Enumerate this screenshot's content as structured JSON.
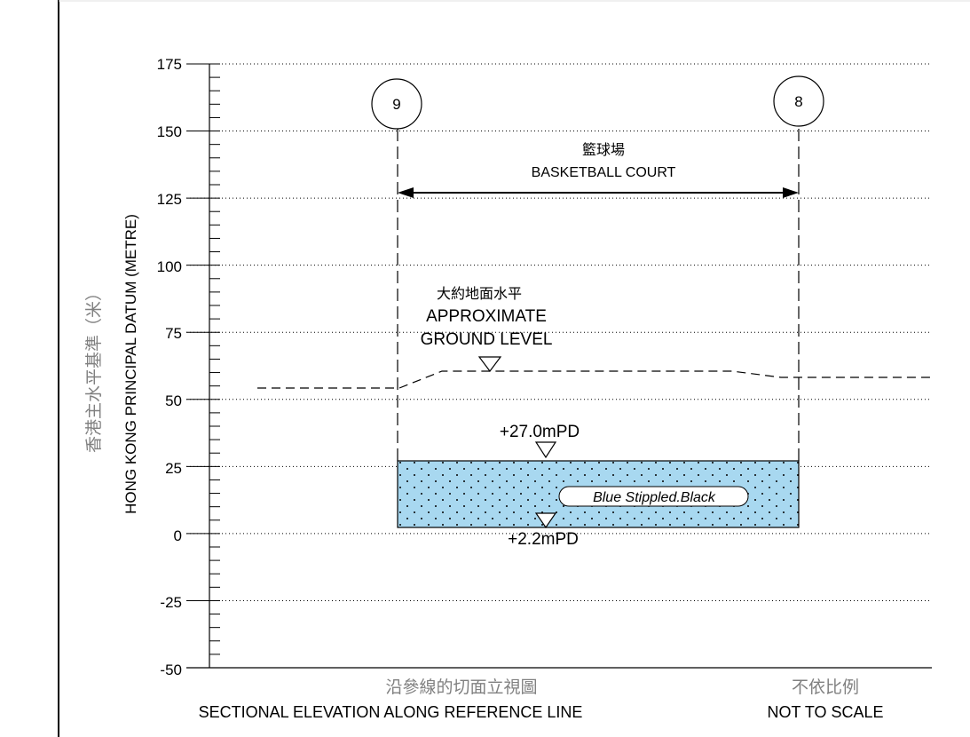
{
  "axis": {
    "label_zh": "香港主水平基準（米）",
    "label_en": "HONG KONG PRINCIPAL DATUM (METRE)",
    "ticks": [
      "175",
      "150",
      "125",
      "100",
      "75",
      "50",
      "25",
      "0",
      "-25",
      "-50"
    ],
    "range": [
      -50,
      175
    ],
    "major_step": 25,
    "minor_step": 5,
    "gridlines": "dotted"
  },
  "reference_points": [
    {
      "id": "9",
      "label": "9"
    },
    {
      "id": "8",
      "label": "8"
    }
  ],
  "court": {
    "name_zh": "籃球場",
    "name_en": "BASKETBALL COURT"
  },
  "ground": {
    "label_zh": "大約地面水平",
    "label_en_1": "APPROXIMATE",
    "label_en_2": "GROUND LEVEL"
  },
  "levels": {
    "top": "+27.0mPD",
    "bottom": "+2.2mPD",
    "top_value": 27.0,
    "bottom_value": 2.2
  },
  "fill_legend": "Blue Stippled.Black",
  "colors": {
    "fill": "#a8d8f0",
    "line": "#000000",
    "gray_text": "#808080"
  },
  "footer": {
    "title_zh": "沿參線的切面立視圖",
    "title_en": "SECTIONAL ELEVATION ALONG REFERENCE LINE",
    "scale_zh": "不依比例",
    "scale_en": "NOT TO SCALE"
  }
}
